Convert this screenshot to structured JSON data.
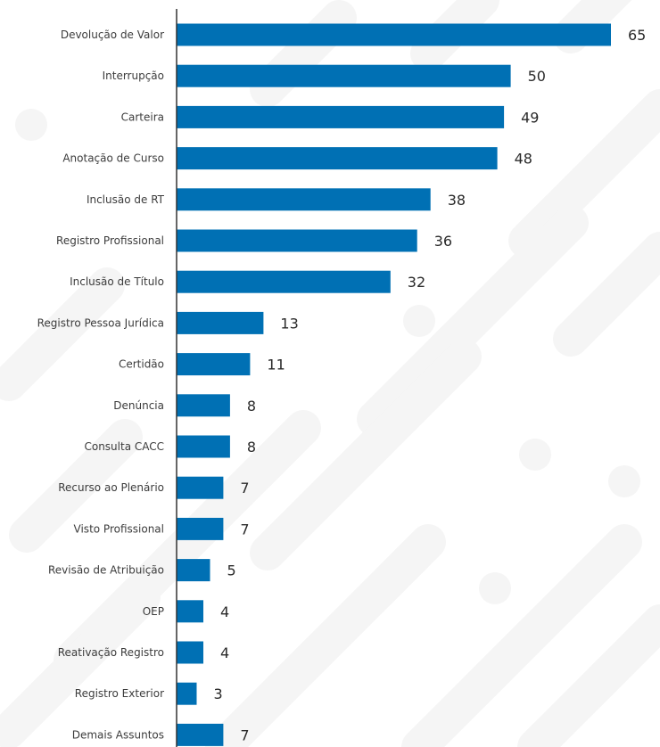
{
  "chart_data": {
    "type": "bar",
    "orientation": "horizontal",
    "categories": [
      "Devolução de Valor",
      "Interrupção",
      "Carteira",
      "Anotação de Curso",
      "Inclusão de RT",
      "Registro Profissional",
      "Inclusão de Título",
      "Registro Pessoa Jurídica",
      "Certidão",
      "Denúncia",
      "Consulta CACC",
      "Recurso ao Plenário",
      "Visto Profissional",
      "Revisão de Atribuição",
      "OEP",
      "Reativação Registro",
      "Registro Exterior",
      "Demais Assuntos"
    ],
    "values": [
      65,
      50,
      49,
      48,
      38,
      36,
      32,
      13,
      11,
      8,
      8,
      7,
      7,
      5,
      4,
      4,
      3,
      7
    ],
    "value_labels": [
      "65",
      "50",
      "49",
      "48",
      "38",
      "36",
      "32",
      "13",
      "11",
      "8",
      "8",
      "7",
      "7",
      "5",
      "4",
      "4",
      "3",
      "7"
    ],
    "title": "",
    "xlabel": "",
    "ylabel": "",
    "xlim": [
      0,
      65
    ],
    "grid": false,
    "legend": "none",
    "bar_color": "#0070b4",
    "axis_color": "#333333",
    "background_pattern_color": "#f4f4f4"
  }
}
